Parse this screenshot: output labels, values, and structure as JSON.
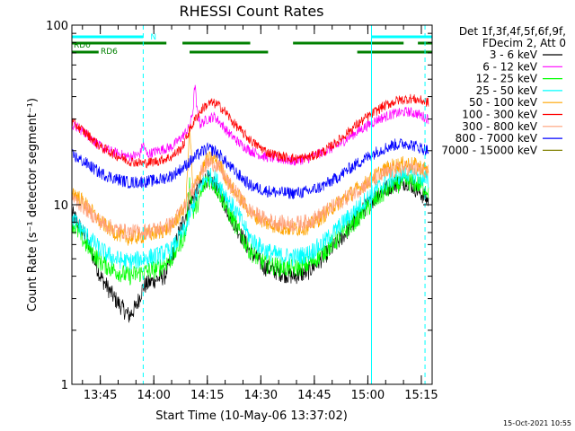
{
  "chart_data": {
    "type": "line",
    "title": "RHESSI Count Rates",
    "xlabel": "Start Time (10-May-06 13:37:02)",
    "ylabel": "Count Rate (s⁻¹ detector segment⁻¹)",
    "x_unit": "minutes since 13:37:02",
    "xlim": [
      0,
      101
    ],
    "ylim": [
      1,
      100
    ],
    "yscale": "log",
    "x_ticks": [
      {
        "t": 7.97,
        "label": "13:45"
      },
      {
        "t": 22.97,
        "label": "14:00"
      },
      {
        "t": 37.97,
        "label": "14:15"
      },
      {
        "t": 52.97,
        "label": "14:30"
      },
      {
        "t": 67.97,
        "label": "14:45"
      },
      {
        "t": 82.97,
        "label": "15:00"
      },
      {
        "t": 97.97,
        "label": "15:15"
      }
    ],
    "y_ticks": [
      {
        "v": 1,
        "label": "1"
      },
      {
        "v": 10,
        "label": "10"
      },
      {
        "v": 100,
        "label": "100"
      }
    ],
    "legend": {
      "position": "right",
      "header": [
        "Det 1f,3f,4f,5f,6f,9f,",
        "FDecim 2, Att 0"
      ]
    },
    "series": [
      {
        "name": "3 - 6 keV",
        "color": "#000000",
        "points": [
          [
            0,
            9
          ],
          [
            4,
            6.5
          ],
          [
            8,
            4
          ],
          [
            12,
            3
          ],
          [
            16,
            2.4
          ],
          [
            18,
            2.7
          ],
          [
            20,
            3.5
          ],
          [
            23,
            3.8
          ],
          [
            26,
            4
          ],
          [
            28,
            5
          ],
          [
            30,
            7
          ],
          [
            33,
            10
          ],
          [
            36,
            13
          ],
          [
            38,
            14
          ],
          [
            40,
            13
          ],
          [
            42,
            11
          ],
          [
            44,
            9
          ],
          [
            47,
            7
          ],
          [
            50,
            5.5
          ],
          [
            54,
            4.5
          ],
          [
            58,
            4.2
          ],
          [
            62,
            4
          ],
          [
            66,
            4.2
          ],
          [
            70,
            5
          ],
          [
            74,
            6
          ],
          [
            78,
            7.5
          ],
          [
            82,
            9.5
          ],
          [
            86,
            11.5
          ],
          [
            90,
            13
          ],
          [
            94,
            13.5
          ],
          [
            97,
            12
          ],
          [
            100,
            10.5
          ]
        ]
      },
      {
        "name": "6 - 12 keV",
        "color": "#ff00ff",
        "points": [
          [
            0,
            28
          ],
          [
            4,
            25
          ],
          [
            8,
            21
          ],
          [
            12,
            19.5
          ],
          [
            16,
            18.5
          ],
          [
            19,
            19
          ],
          [
            20,
            22
          ],
          [
            21,
            19
          ],
          [
            24,
            20
          ],
          [
            28,
            21
          ],
          [
            31,
            24
          ],
          [
            33,
            27
          ],
          [
            34,
            34
          ],
          [
            34.5,
            48
          ],
          [
            35,
            34
          ],
          [
            36,
            28
          ],
          [
            38,
            30
          ],
          [
            40,
            31
          ],
          [
            42,
            28
          ],
          [
            44,
            25
          ],
          [
            47,
            22
          ],
          [
            50,
            20
          ],
          [
            54,
            18.5
          ],
          [
            58,
            18
          ],
          [
            62,
            17.5
          ],
          [
            66,
            18
          ],
          [
            70,
            19.5
          ],
          [
            74,
            21
          ],
          [
            78,
            24
          ],
          [
            82,
            27
          ],
          [
            86,
            30
          ],
          [
            90,
            32
          ],
          [
            94,
            33
          ],
          [
            97,
            32
          ],
          [
            100,
            30
          ]
        ]
      },
      {
        "name": "12 - 25 keV",
        "color": "#00ff00",
        "points": [
          [
            0,
            8
          ],
          [
            4,
            6
          ],
          [
            8,
            4.8
          ],
          [
            12,
            4.3
          ],
          [
            16,
            4
          ],
          [
            20,
            4.2
          ],
          [
            24,
            4.4
          ],
          [
            28,
            5
          ],
          [
            32,
            7
          ],
          [
            33,
            13
          ],
          [
            34,
            9
          ],
          [
            36,
            11
          ],
          [
            38,
            14
          ],
          [
            40,
            13
          ],
          [
            42,
            11
          ],
          [
            44,
            9
          ],
          [
            47,
            7
          ],
          [
            50,
            5.5
          ],
          [
            54,
            4.7
          ],
          [
            58,
            4.5
          ],
          [
            62,
            4.4
          ],
          [
            66,
            4.6
          ],
          [
            70,
            5.3
          ],
          [
            74,
            6.3
          ],
          [
            78,
            7.6
          ],
          [
            82,
            9.2
          ],
          [
            86,
            11
          ],
          [
            90,
            12.8
          ],
          [
            94,
            13.5
          ],
          [
            97,
            13
          ],
          [
            100,
            12
          ]
        ]
      },
      {
        "name": "25 - 50 keV",
        "color": "#00ffff",
        "points": [
          [
            0,
            8.5
          ],
          [
            4,
            6.8
          ],
          [
            8,
            5.6
          ],
          [
            12,
            5
          ],
          [
            16,
            4.8
          ],
          [
            20,
            5
          ],
          [
            24,
            5.2
          ],
          [
            28,
            5.6
          ],
          [
            32,
            7.5
          ],
          [
            34,
            10
          ],
          [
            36,
            12.5
          ],
          [
            38,
            14.5
          ],
          [
            40,
            14
          ],
          [
            42,
            12.5
          ],
          [
            44,
            10.5
          ],
          [
            47,
            8.5
          ],
          [
            50,
            6.5
          ],
          [
            54,
            5.6
          ],
          [
            58,
            5.2
          ],
          [
            62,
            5.1
          ],
          [
            66,
            5.3
          ],
          [
            70,
            6
          ],
          [
            74,
            7.2
          ],
          [
            78,
            8.7
          ],
          [
            82,
            10.5
          ],
          [
            86,
            12.5
          ],
          [
            90,
            14
          ],
          [
            94,
            15
          ],
          [
            97,
            14.5
          ],
          [
            100,
            13.5
          ]
        ]
      },
      {
        "name": "50 - 100 keV",
        "color": "#ffa500",
        "points": [
          [
            0,
            12
          ],
          [
            4,
            10
          ],
          [
            8,
            8
          ],
          [
            12,
            7
          ],
          [
            16,
            6.5
          ],
          [
            20,
            6.7
          ],
          [
            24,
            7
          ],
          [
            28,
            7.5
          ],
          [
            32,
            10
          ],
          [
            33,
            28
          ],
          [
            34,
            12
          ],
          [
            36,
            15
          ],
          [
            38,
            18
          ],
          [
            40,
            18
          ],
          [
            42,
            16
          ],
          [
            44,
            13
          ],
          [
            47,
            11
          ],
          [
            50,
            9
          ],
          [
            54,
            8
          ],
          [
            58,
            7.5
          ],
          [
            62,
            7.3
          ],
          [
            66,
            7.5
          ],
          [
            70,
            8.5
          ],
          [
            74,
            10
          ],
          [
            78,
            11.5
          ],
          [
            82,
            13
          ],
          [
            86,
            15
          ],
          [
            90,
            16.5
          ],
          [
            94,
            17
          ],
          [
            97,
            16.5
          ],
          [
            100,
            15.5
          ]
        ]
      },
      {
        "name": "100 - 300 keV",
        "color": "#ff0000",
        "points": [
          [
            0,
            29
          ],
          [
            4,
            25
          ],
          [
            8,
            21
          ],
          [
            12,
            19
          ],
          [
            16,
            17.5
          ],
          [
            20,
            17
          ],
          [
            24,
            17.5
          ],
          [
            28,
            18.5
          ],
          [
            31,
            21
          ],
          [
            33,
            26
          ],
          [
            35,
            31
          ],
          [
            37,
            35
          ],
          [
            39,
            37
          ],
          [
            41,
            36
          ],
          [
            43,
            33
          ],
          [
            45,
            29
          ],
          [
            48,
            25
          ],
          [
            51,
            22
          ],
          [
            55,
            19.5
          ],
          [
            59,
            18.5
          ],
          [
            63,
            18
          ],
          [
            67,
            18.5
          ],
          [
            71,
            20
          ],
          [
            75,
            23
          ],
          [
            79,
            27
          ],
          [
            83,
            31
          ],
          [
            87,
            35
          ],
          [
            91,
            38
          ],
          [
            95,
            39
          ],
          [
            98,
            38
          ],
          [
            100,
            37
          ]
        ]
      },
      {
        "name": "300 - 800 keV",
        "color": "#ffa07a",
        "points": [
          [
            0,
            11
          ],
          [
            4,
            9.5
          ],
          [
            8,
            8
          ],
          [
            12,
            7.3
          ],
          [
            16,
            7
          ],
          [
            20,
            7.1
          ],
          [
            24,
            7.3
          ],
          [
            28,
            7.8
          ],
          [
            32,
            10
          ],
          [
            34,
            12.5
          ],
          [
            36,
            15
          ],
          [
            38,
            17
          ],
          [
            40,
            17
          ],
          [
            42,
            15.5
          ],
          [
            44,
            13
          ],
          [
            47,
            11
          ],
          [
            50,
            9.2
          ],
          [
            54,
            8.3
          ],
          [
            58,
            7.9
          ],
          [
            62,
            7.8
          ],
          [
            66,
            8
          ],
          [
            70,
            8.8
          ],
          [
            74,
            10
          ],
          [
            78,
            11.3
          ],
          [
            82,
            12.8
          ],
          [
            86,
            14.3
          ],
          [
            90,
            15.5
          ],
          [
            94,
            16
          ],
          [
            97,
            15.6
          ],
          [
            100,
            15
          ]
        ]
      },
      {
        "name": "800 - 7000 keV",
        "color": "#0000ff",
        "points": [
          [
            0,
            19
          ],
          [
            4,
            17
          ],
          [
            8,
            15
          ],
          [
            12,
            14
          ],
          [
            16,
            13.3
          ],
          [
            20,
            13.4
          ],
          [
            24,
            13.7
          ],
          [
            28,
            14.5
          ],
          [
            31,
            16
          ],
          [
            34,
            18
          ],
          [
            36,
            19.5
          ],
          [
            38,
            20.5
          ],
          [
            40,
            20
          ],
          [
            42,
            18.5
          ],
          [
            44,
            16.5
          ],
          [
            47,
            14.5
          ],
          [
            50,
            12.8
          ],
          [
            54,
            12
          ],
          [
            58,
            11.7
          ],
          [
            62,
            11.6
          ],
          [
            66,
            11.8
          ],
          [
            70,
            12.6
          ],
          [
            74,
            14
          ],
          [
            78,
            16
          ],
          [
            82,
            18
          ],
          [
            86,
            20
          ],
          [
            90,
            21.5
          ],
          [
            94,
            22
          ],
          [
            97,
            21
          ],
          [
            100,
            20
          ]
        ]
      },
      {
        "name": "7000 - 15000 keV",
        "color": "#808000",
        "points": []
      }
    ],
    "state_bars": [
      {
        "label": "RD0",
        "color": "#008000",
        "segments": [
          [
            0,
            26.5
          ],
          [
            31,
            50
          ],
          [
            62,
            93
          ],
          [
            97,
            101
          ]
        ]
      },
      {
        "label": "RD6",
        "color": "#008000",
        "segments": [
          [
            0,
            7.5
          ],
          [
            33,
            55
          ],
          [
            80,
            101
          ]
        ]
      },
      {
        "label": "N",
        "color": "#00ffff",
        "segments": [
          [
            0,
            20
          ],
          [
            84,
            101
          ]
        ]
      }
    ],
    "vertical_lines": [
      {
        "t": 20,
        "style": "dashed",
        "color": "#00ffff"
      },
      {
        "t": 84,
        "style": "solid",
        "color": "#00ffff"
      },
      {
        "t": 99,
        "style": "dashed",
        "color": "#00ffff"
      }
    ],
    "timestamp": "15-Oct-2021 10:55"
  }
}
